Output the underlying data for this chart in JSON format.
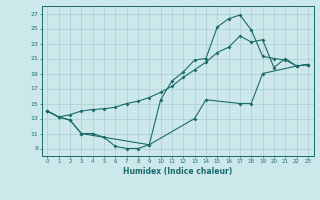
{
  "xlabel": "Humidex (Indice chaleur)",
  "xlim": [
    -0.5,
    23.5
  ],
  "ylim": [
    8,
    28
  ],
  "yticks": [
    9,
    11,
    13,
    15,
    17,
    19,
    21,
    23,
    25,
    27
  ],
  "xticks": [
    0,
    1,
    2,
    3,
    4,
    5,
    6,
    7,
    8,
    9,
    10,
    11,
    12,
    13,
    14,
    15,
    16,
    17,
    18,
    19,
    20,
    21,
    22,
    23
  ],
  "bg_color": "#cde8eb",
  "grid_color": "#aacdd2",
  "line_color": "#1a6b6b",
  "curve1_x": [
    0,
    1,
    2,
    3,
    4,
    5,
    6,
    7,
    8,
    9,
    10,
    11,
    12,
    13,
    14,
    15,
    16,
    17,
    18,
    19,
    20,
    21,
    22,
    23
  ],
  "curve1_y": [
    14.0,
    13.2,
    12.8,
    11.0,
    11.0,
    10.5,
    9.3,
    9.0,
    9.0,
    9.5,
    15.5,
    18.0,
    19.2,
    20.8,
    21.0,
    25.2,
    26.3,
    26.8,
    24.8,
    21.3,
    21.0,
    20.8,
    20.0,
    20.2
  ],
  "curve2_x": [
    0,
    1,
    2,
    3,
    4,
    5,
    6,
    7,
    8,
    9,
    10,
    11,
    12,
    13,
    14,
    15,
    16,
    17,
    18,
    19,
    20,
    21,
    22,
    23
  ],
  "curve2_y": [
    14.0,
    13.2,
    13.5,
    14.0,
    14.2,
    14.3,
    14.5,
    15.0,
    15.3,
    15.8,
    16.5,
    17.3,
    18.5,
    19.5,
    20.5,
    21.8,
    22.5,
    24.0,
    23.2,
    23.5,
    19.8,
    21.0,
    20.0,
    20.2
  ],
  "curve3_x": [
    0,
    1,
    2,
    3,
    9,
    13,
    14,
    17,
    18,
    19,
    22,
    23
  ],
  "curve3_y": [
    14.0,
    13.2,
    12.8,
    11.0,
    9.5,
    13.0,
    15.5,
    15.0,
    15.0,
    19.0,
    20.0,
    20.2
  ]
}
